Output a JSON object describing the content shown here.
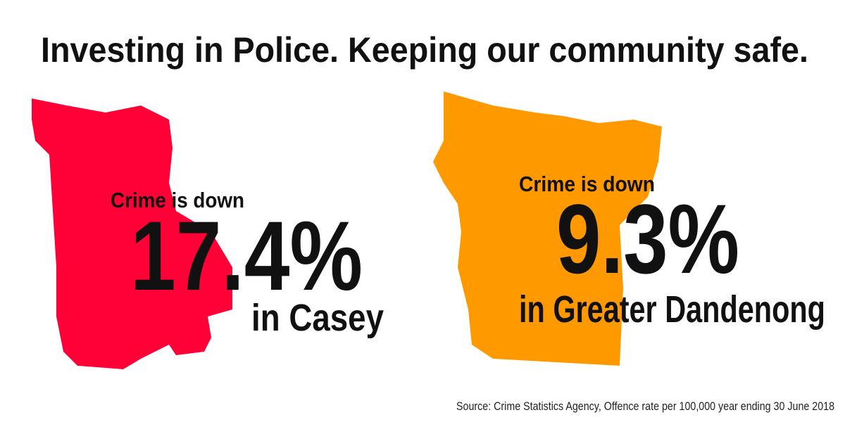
{
  "header": {
    "title": "Investing in Police. Keeping our community safe."
  },
  "panels": [
    {
      "lead": "Crime is down",
      "value": "17.4%",
      "region": "in Casey"
    },
    {
      "lead": "Crime is down",
      "value": "9.3%",
      "region": "in Greater Dandenong"
    }
  ],
  "footer": {
    "source": "Source: Crime Statistics Agency, Offence rate per 100,000 year ending 30 June 2018"
  }
}
